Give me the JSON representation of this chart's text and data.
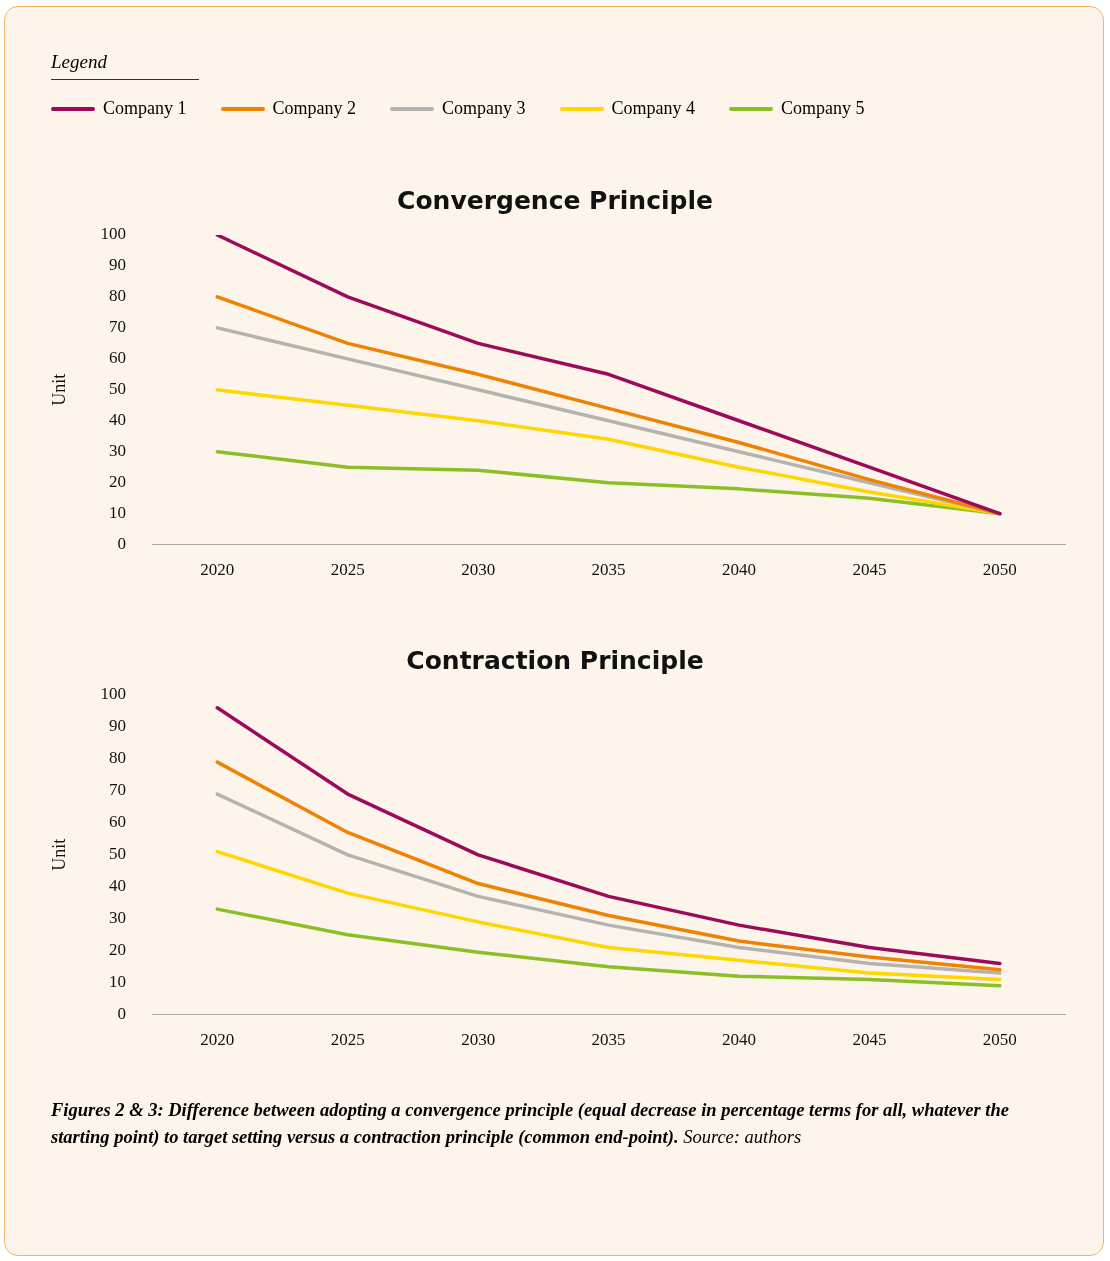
{
  "chart_data": [
    {
      "type": "line",
      "title": "Convergence Principle",
      "ylabel": "Unit",
      "legend_title": "Legend",
      "legend": "top",
      "marker": "none",
      "grid": false,
      "categories": [
        "2020",
        "2025",
        "2030",
        "2035",
        "2040",
        "2045",
        "2050"
      ],
      "ylim": [
        0,
        100
      ],
      "yticks": [
        0,
        10,
        20,
        30,
        40,
        50,
        60,
        70,
        80,
        90,
        100
      ],
      "series": [
        {
          "name": "Company 1",
          "color": "#9c0a5a",
          "values": [
            100,
            80,
            65,
            55,
            40,
            25,
            10
          ]
        },
        {
          "name": "Company 2",
          "color": "#ef8200",
          "values": [
            80,
            65,
            55,
            44,
            33,
            21,
            10
          ]
        },
        {
          "name": "Company 3",
          "color": "#b5b3b0",
          "values": [
            70,
            60,
            50,
            40,
            30,
            20,
            10
          ]
        },
        {
          "name": "Company 4",
          "color": "#ffd600",
          "values": [
            50,
            45,
            40,
            34,
            25,
            17,
            10
          ]
        },
        {
          "name": "Company 5",
          "color": "#8cbf26",
          "values": [
            30,
            25,
            24,
            20,
            18,
            15,
            10
          ]
        }
      ]
    },
    {
      "type": "line",
      "title": "Contraction Principle",
      "ylabel": "Unit",
      "marker": "none",
      "grid": false,
      "categories": [
        "2020",
        "2025",
        "2030",
        "2035",
        "2040",
        "2045",
        "2050"
      ],
      "ylim": [
        0,
        100
      ],
      "yticks": [
        0,
        10,
        20,
        30,
        40,
        50,
        60,
        70,
        80,
        90,
        100
      ],
      "series": [
        {
          "color": "#9c0a5a",
          "values": [
            96,
            69,
            50,
            37,
            28,
            21,
            16
          ]
        },
        {
          "color": "#ef8200",
          "values": [
            79,
            57,
            41,
            31,
            23,
            18,
            14
          ]
        },
        {
          "color": "#b5b3b0",
          "values": [
            69,
            50,
            37,
            28,
            21,
            16,
            13
          ]
        },
        {
          "color": "#ffd600",
          "values": [
            51,
            38,
            29,
            21,
            17,
            13,
            11
          ]
        },
        {
          "color": "#8cbf26",
          "values": [
            33,
            25,
            19.5,
            15,
            12,
            11,
            9
          ]
        }
      ],
      "annotations": [
        "Figures 2 & 3: Difference between adopting a convergence principle (equal decrease in percentage terms for all, whatever the starting point) to target setting versus a contraction principle (common end-point).",
        "Source: authors"
      ]
    }
  ]
}
